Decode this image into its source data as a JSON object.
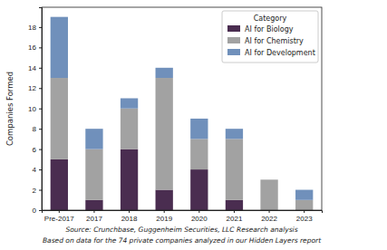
{
  "chart_data": {
    "type": "bar",
    "stacked": true,
    "y_label": "Companies Formed",
    "legend_title": "Category",
    "legend": "upper right",
    "annotations": [
      "Source: Crunchbase, Guggenheim Securities, LLC Research analysis",
      "Based on data for the 74 private companies analyzed in our Hidden Layers report"
    ],
    "categories": [
      "Pre-2017",
      "2017",
      "2018",
      "2019",
      "2020",
      "2021",
      "2022",
      "2023"
    ],
    "series": [
      {
        "name": "AI for Biology",
        "color": "#4a2d50",
        "values": [
          5,
          1,
          6,
          2,
          4,
          1,
          0,
          0
        ]
      },
      {
        "name": "AI for Chemistry",
        "color": "#a2a2a2",
        "values": [
          8,
          5,
          4,
          11,
          3,
          6,
          3,
          1
        ]
      },
      {
        "name": "AI for Development",
        "color": "#7090bb",
        "values": [
          6,
          2,
          1,
          1,
          2,
          1,
          0,
          1
        ]
      }
    ],
    "ylim": [
      0,
      19.95
    ],
    "yticks": [
      0,
      2,
      4,
      6,
      8,
      10,
      12,
      14,
      16,
      18
    ],
    "grid": false
  }
}
